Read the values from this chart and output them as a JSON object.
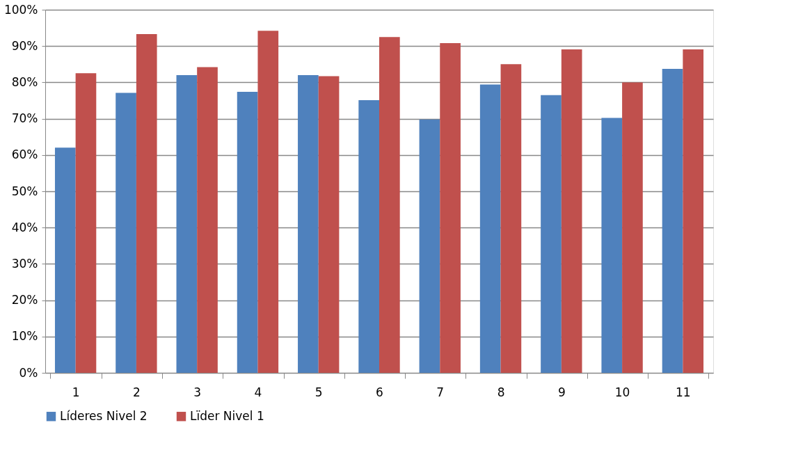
{
  "chart_data": {
    "type": "bar",
    "categories": [
      "1",
      "2",
      "3",
      "4",
      "5",
      "6",
      "7",
      "8",
      "9",
      "10",
      "11"
    ],
    "series": [
      {
        "name": "Líderes Nivel 2",
        "color": "#4f81bd",
        "values": [
          62.0,
          77.1,
          82.0,
          77.4,
          82.0,
          75.1,
          69.8,
          79.4,
          76.5,
          70.2,
          83.7
        ]
      },
      {
        "name": "Lïder Nivel 1",
        "color": "#c0504d",
        "values": [
          82.5,
          93.3,
          84.2,
          94.2,
          81.7,
          92.5,
          90.8,
          85.0,
          89.1,
          80.0,
          89.1
        ]
      }
    ],
    "ylim": [
      0,
      100
    ],
    "yticks": [
      {
        "value": 0,
        "label": "0%"
      },
      {
        "value": 10,
        "label": "10%"
      },
      {
        "value": 20,
        "label": "20%"
      },
      {
        "value": 30,
        "label": "30%"
      },
      {
        "value": 40,
        "label": "40%"
      },
      {
        "value": 50,
        "label": "50%"
      },
      {
        "value": 60,
        "label": "60%"
      },
      {
        "value": 70,
        "label": "70%"
      },
      {
        "value": 80,
        "label": "80%"
      },
      {
        "value": 90,
        "label": "90%"
      },
      {
        "value": 100,
        "label": "100%"
      }
    ],
    "grid": "y",
    "legend": "bottom"
  }
}
